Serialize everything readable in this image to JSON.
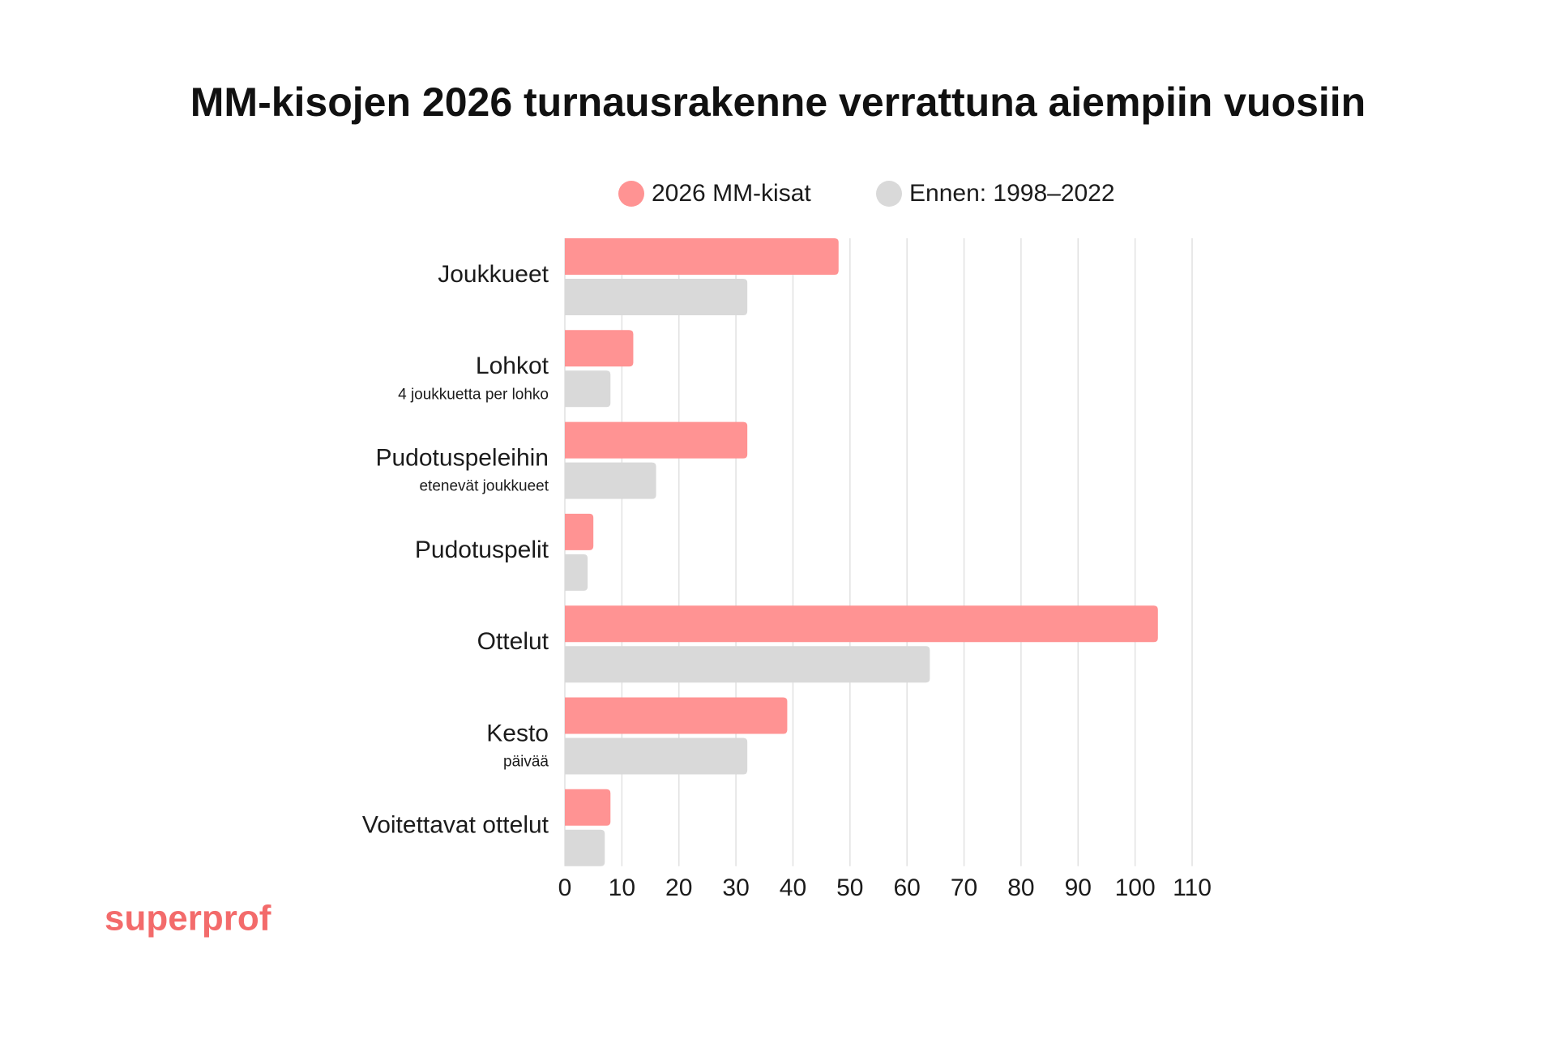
{
  "chart_data": {
    "type": "bar",
    "orientation": "horizontal",
    "title": "MM-kisojen 2026 turnausrakenne verrattuna aiempiin vuosiin",
    "categories": [
      "Joukkueet",
      "Lohkot",
      "Pudotuspeleihin",
      "Pudotuspelit",
      "Ottelut",
      "Kesto",
      "Voitettavat ottelut"
    ],
    "category_sublabels": [
      "",
      "4 joukkuetta per lohko",
      "etenevät joukkueet",
      "",
      "",
      "päivää",
      ""
    ],
    "series": [
      {
        "name": "2026 MM-kisat",
        "values": [
          48,
          12,
          32,
          5,
          104,
          39,
          8
        ],
        "color": "#ff9393"
      },
      {
        "name": "Ennen: 1998–2022",
        "values": [
          32,
          8,
          16,
          4,
          64,
          32,
          7
        ],
        "color": "#d9d9d9"
      }
    ],
    "xlim": [
      0,
      110
    ],
    "xticks": [
      0,
      10,
      20,
      30,
      40,
      50,
      60,
      70,
      80,
      90,
      100,
      110
    ],
    "xlabel": "",
    "ylabel": "",
    "grid": "vertical",
    "grid_color": "#e1e1e1",
    "legend_position": "top"
  },
  "logo": {
    "text": "superprof",
    "color": "#f36b6b"
  }
}
